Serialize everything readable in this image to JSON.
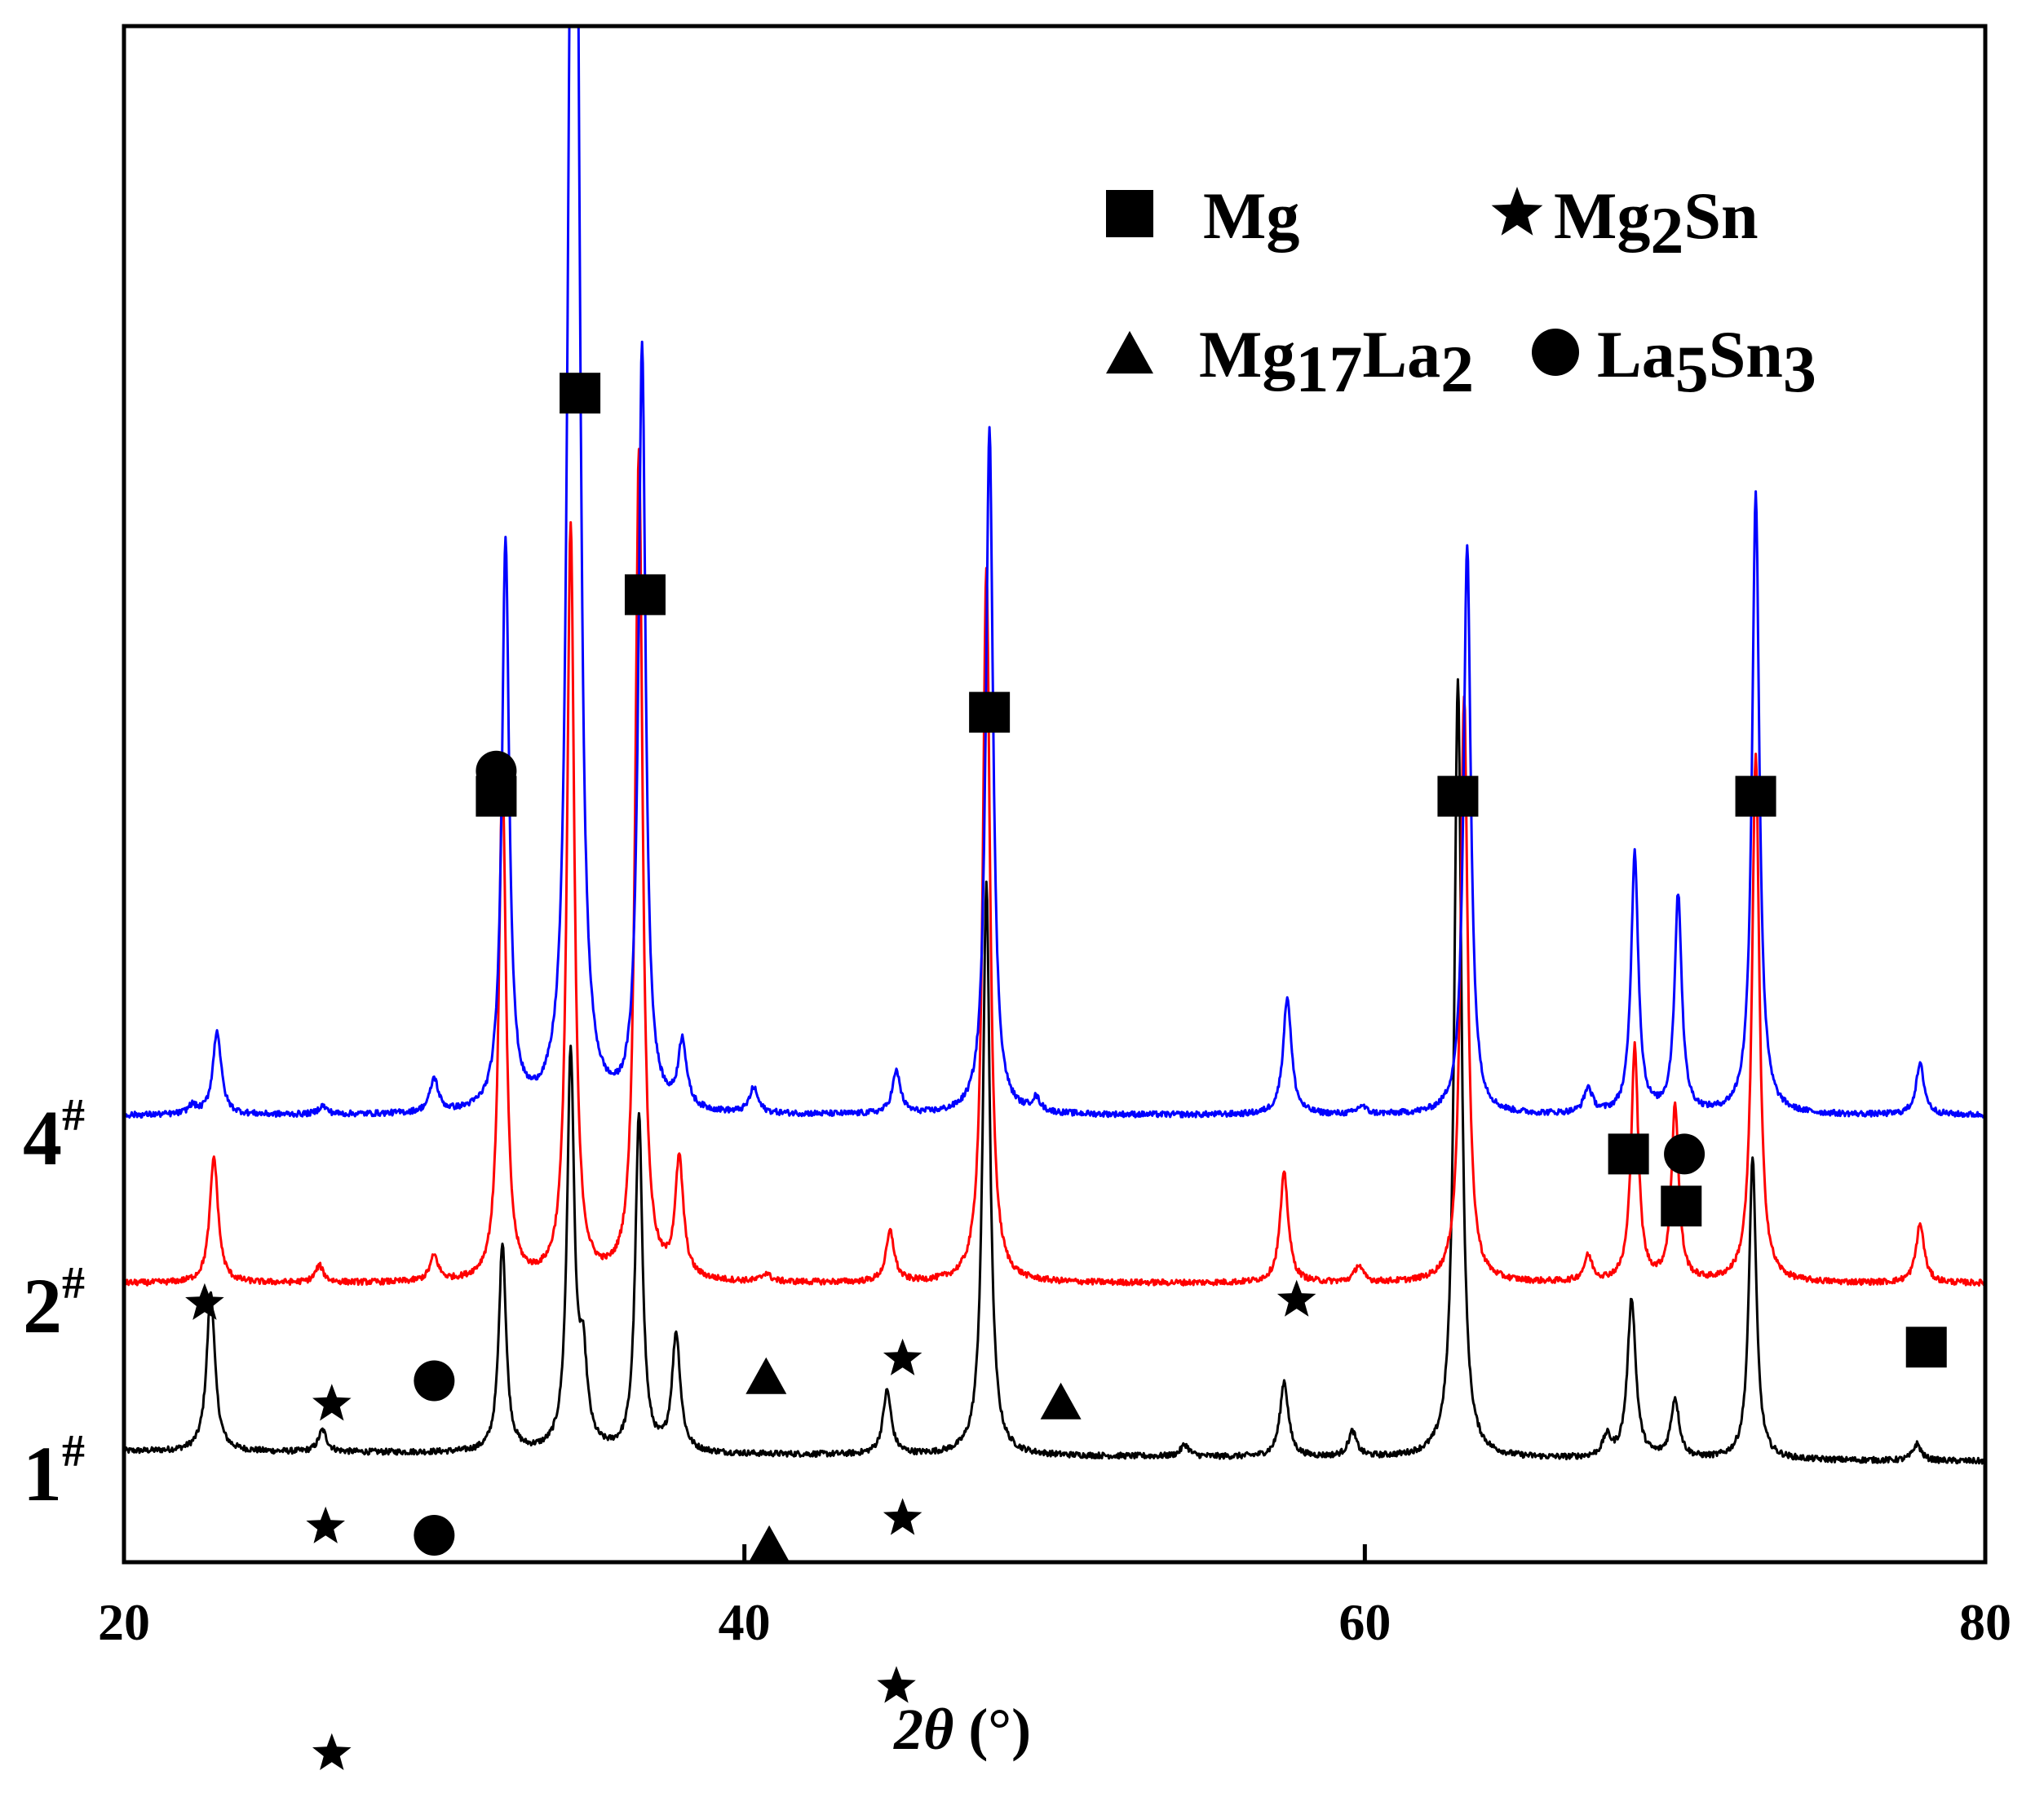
{
  "chart_data": {
    "type": "line",
    "title": "",
    "xlabel": {
      "symbol": "2θ",
      "unit": "(°)"
    },
    "ylabel": "",
    "xlim": [
      20,
      80
    ],
    "x_ticks": [
      20,
      40,
      60,
      80
    ],
    "grid": false,
    "legend_position": "top-right",
    "phases": [
      {
        "id": "Mg",
        "marker": "square",
        "label": "Mg",
        "formula": [
          {
            "t": "Mg"
          }
        ]
      },
      {
        "id": "Mg2Sn",
        "marker": "star",
        "label": "Mg2Sn",
        "formula": [
          {
            "t": "Mg"
          },
          {
            "t": "2",
            "sub": true
          },
          {
            "t": "Sn"
          }
        ]
      },
      {
        "id": "Mg17La2",
        "marker": "triangle",
        "label": "Mg17La2",
        "formula": [
          {
            "t": "Mg"
          },
          {
            "t": "17",
            "sub": true
          },
          {
            "t": "La"
          },
          {
            "t": "2",
            "sub": true
          }
        ]
      },
      {
        "id": "La5Sn3",
        "marker": "circle",
        "label": "La5Sn3",
        "formula": [
          {
            "t": "La"
          },
          {
            "t": "5",
            "sub": true
          },
          {
            "t": "Sn"
          },
          {
            "t": "3",
            "sub": true
          }
        ]
      }
    ],
    "series": [
      {
        "name": "1#",
        "label": "1",
        "sup": "#",
        "color": "#000000",
        "baseline": 0.0,
        "baseline_slope": -0.001,
        "peaks": [
          {
            "x": 22.8,
            "h": 0.95
          },
          {
            "x": 26.4,
            "h": 0.13
          },
          {
            "x": 32.2,
            "h": 1.25
          },
          {
            "x": 34.4,
            "h": 2.35
          },
          {
            "x": 34.8,
            "h": 0.5
          },
          {
            "x": 36.6,
            "h": 2.0
          },
          {
            "x": 37.8,
            "h": 0.7
          },
          {
            "x": 44.6,
            "h": 0.38
          },
          {
            "x": 47.8,
            "h": 3.4
          },
          {
            "x": 54.2,
            "h": 0.07
          },
          {
            "x": 57.4,
            "h": 0.45
          },
          {
            "x": 59.6,
            "h": 0.15
          },
          {
            "x": 63.0,
            "h": 4.65
          },
          {
            "x": 67.8,
            "h": 0.12
          },
          {
            "x": 68.6,
            "h": 0.95
          },
          {
            "x": 70.0,
            "h": 0.35
          },
          {
            "x": 72.5,
            "h": 1.8
          },
          {
            "x": 77.8,
            "h": 0.1
          }
        ]
      },
      {
        "name": "2#",
        "label": "2",
        "sup": "#",
        "color": "#ff0000",
        "baseline": 1.0,
        "baseline_slope": 0.0,
        "peaks": [
          {
            "x": 22.9,
            "h": 0.75
          },
          {
            "x": 26.3,
            "h": 0.1
          },
          {
            "x": 30.0,
            "h": 0.15
          },
          {
            "x": 32.2,
            "h": 3.0
          },
          {
            "x": 34.4,
            "h": 4.5
          },
          {
            "x": 36.6,
            "h": 4.95
          },
          {
            "x": 37.9,
            "h": 0.7
          },
          {
            "x": 40.7,
            "h": 0.05
          },
          {
            "x": 44.7,
            "h": 0.3
          },
          {
            "x": 47.8,
            "h": 4.25
          },
          {
            "x": 57.4,
            "h": 0.65
          },
          {
            "x": 59.8,
            "h": 0.1
          },
          {
            "x": 63.2,
            "h": 3.5
          },
          {
            "x": 67.2,
            "h": 0.15
          },
          {
            "x": 68.7,
            "h": 1.4
          },
          {
            "x": 70.0,
            "h": 1.05
          },
          {
            "x": 72.6,
            "h": 3.15
          },
          {
            "x": 77.9,
            "h": 0.35
          }
        ]
      },
      {
        "name": "4#",
        "label": "4",
        "sup": "#",
        "color": "#0000ff",
        "baseline": 2.0,
        "baseline_slope": 0.0,
        "peaks": [
          {
            "x": 22.2,
            "h": 0.05
          },
          {
            "x": 23.0,
            "h": 0.5
          },
          {
            "x": 26.4,
            "h": 0.05
          },
          {
            "x": 30.0,
            "h": 0.2
          },
          {
            "x": 32.3,
            "h": 3.4
          },
          {
            "x": 34.4,
            "h": 5.5
          },
          {
            "x": 34.6,
            "h": 5.9
          },
          {
            "x": 36.7,
            "h": 4.55
          },
          {
            "x": 38.0,
            "h": 0.4
          },
          {
            "x": 40.3,
            "h": 0.15
          },
          {
            "x": 44.9,
            "h": 0.25
          },
          {
            "x": 47.9,
            "h": 4.1
          },
          {
            "x": 49.4,
            "h": 0.08
          },
          {
            "x": 57.5,
            "h": 0.7
          },
          {
            "x": 59.9,
            "h": 0.05
          },
          {
            "x": 63.3,
            "h": 3.4
          },
          {
            "x": 67.2,
            "h": 0.15
          },
          {
            "x": 68.7,
            "h": 1.55
          },
          {
            "x": 70.1,
            "h": 1.3
          },
          {
            "x": 72.6,
            "h": 3.7
          },
          {
            "x": 77.9,
            "h": 0.3
          }
        ]
      }
    ],
    "annotations": [
      {
        "phase": "Mg",
        "x": 34.7,
        "level": 6.3
      },
      {
        "phase": "Mg",
        "x": 36.8,
        "level": 5.1
      },
      {
        "phase": "La5Sn3",
        "x": 32.0,
        "level": 4.05
      },
      {
        "phase": "Mg",
        "x": 32.0,
        "level": 3.9
      },
      {
        "phase": "Mg",
        "x": 47.9,
        "level": 4.4
      },
      {
        "phase": "Mg",
        "x": 63.0,
        "level": 3.9
      },
      {
        "phase": "Mg",
        "x": 72.6,
        "level": 3.9
      },
      {
        "phase": "Mg",
        "x": 68.5,
        "level": 1.77
      },
      {
        "phase": "La5Sn3",
        "x": 70.3,
        "level": 1.77
      },
      {
        "phase": "Mg",
        "x": 70.2,
        "level": 1.46
      },
      {
        "phase": "Mg",
        "x": 78.1,
        "level": 0.62
      },
      {
        "phase": "Mg2Sn",
        "x": 22.6,
        "level": 0.88
      },
      {
        "phase": "Mg2Sn",
        "x": 26.7,
        "level": 0.28
      },
      {
        "phase": "La5Sn3",
        "x": 30.0,
        "level": 0.42
      },
      {
        "phase": "Mg17La2",
        "x": 40.7,
        "level": 0.45
      },
      {
        "phase": "Mg2Sn",
        "x": 45.1,
        "level": 0.55
      },
      {
        "phase": "Mg17La2",
        "x": 50.2,
        "level": 0.3
      },
      {
        "phase": "Mg2Sn",
        "x": 57.8,
        "level": 0.9
      },
      {
        "phase": "Mg2Sn",
        "x": 26.5,
        "level": -0.45
      },
      {
        "phase": "La5Sn3",
        "x": 30.0,
        "level": -0.5
      },
      {
        "phase": "Mg17La2",
        "x": 40.8,
        "level": -0.55
      },
      {
        "phase": "Mg2Sn",
        "x": 45.1,
        "level": -0.4
      },
      {
        "phase": "Mg2Sn",
        "x": 26.7,
        "level": -1.8
      },
      {
        "phase": "Mg2Sn",
        "x": 44.9,
        "level": -1.4
      }
    ]
  }
}
